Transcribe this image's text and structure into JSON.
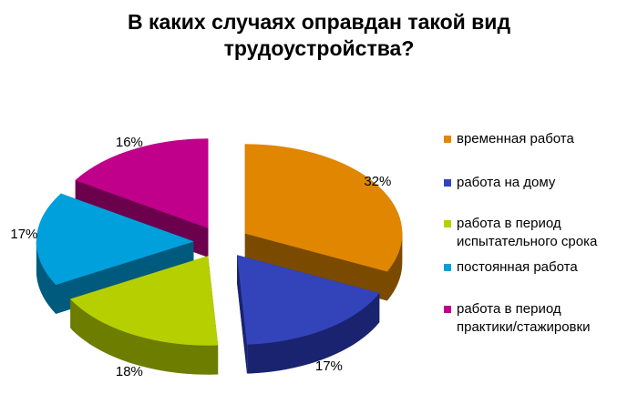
{
  "title": {
    "line1": "В каких случаях оправдан такой вид",
    "line2": "трудоустройства?"
  },
  "chart_data": {
    "type": "pie",
    "style": "3d-exploded",
    "title": "В каких случаях оправдан такой вид трудоустройства?",
    "legend_position": "right",
    "series": [
      {
        "label_lines": [
          "временная работа"
        ],
        "value": 32,
        "data_label": "32%",
        "color": "#E08600",
        "side": "#7A4A00"
      },
      {
        "label_lines": [
          "работа на дому"
        ],
        "value": 17,
        "data_label": "17%",
        "color": "#3344BB",
        "side": "#1A2370"
      },
      {
        "label_lines": [
          "работа в период",
          "испытательного срока"
        ],
        "value": 18,
        "data_label": "18%",
        "color": "#B5CF00",
        "side": "#6C7D00"
      },
      {
        "label_lines": [
          "постоянная работа"
        ],
        "value": 17,
        "data_label": "17%",
        "color": "#00A0DC",
        "side": "#005A7E"
      },
      {
        "label_lines": [
          "работа в период",
          "практики/стажировки"
        ],
        "value": 16,
        "data_label": "16%",
        "color": "#C0008A",
        "side": "#6B004C"
      }
    ]
  }
}
